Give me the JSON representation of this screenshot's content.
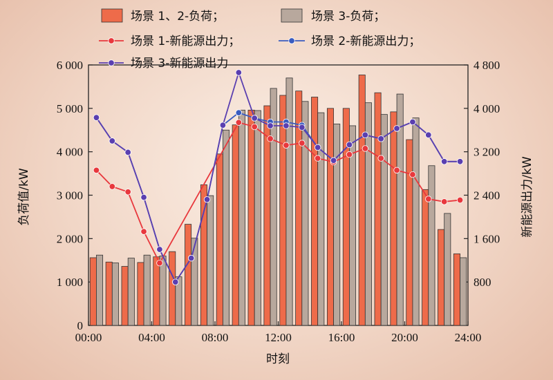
{
  "chart_data": {
    "type": "bar",
    "xlabel": "时刻",
    "ylabel_left": "负荷值/kW",
    "ylabel_right": "新能源出力/kW",
    "ylim_left": [
      0,
      6000
    ],
    "ylim_right": [
      0,
      4800
    ],
    "yticks_left": [
      "0",
      "1 000",
      "2 000",
      "3 000",
      "4 000",
      "5 000",
      "6 000"
    ],
    "yticks_left_values": [
      0,
      1000,
      2000,
      3000,
      4000,
      5000,
      6000
    ],
    "yticks_right": [
      "800",
      "1 600",
      "2 400",
      "3 200",
      "4 000",
      "4 800"
    ],
    "yticks_right_values": [
      800,
      1600,
      2400,
      3200,
      4000,
      4800
    ],
    "xticks": [
      "00:00",
      "04:00",
      "08:00",
      "12:00",
      "16:00",
      "20:00",
      "24:00"
    ],
    "xticks_hours": [
      0,
      4,
      8,
      12,
      16,
      20,
      24
    ],
    "hours": [
      1,
      2,
      3,
      4,
      5,
      6,
      7,
      8,
      9,
      10,
      11,
      12,
      13,
      14,
      15,
      16,
      17,
      18,
      19,
      20,
      21,
      22,
      23,
      24
    ],
    "bar_series": [
      {
        "name": "场景 1、2-负荷；",
        "color": "#ee6b4a",
        "values": [
          1560,
          1460,
          1360,
          1450,
          1580,
          1700,
          2330,
          3240,
          3950,
          4620,
          4960,
          5060,
          5300,
          5400,
          5260,
          5000,
          5000,
          5770,
          5360,
          4920,
          4280,
          3130,
          2210,
          1650
        ]
      },
      {
        "name": "场景 3-负荷；",
        "color": "#b8a89d",
        "values": [
          1620,
          1440,
          1550,
          1620,
          1600,
          1120,
          2010,
          2990,
          4500,
          4960,
          4950,
          5460,
          5700,
          5160,
          4900,
          4640,
          4600,
          5130,
          4860,
          5330,
          4780,
          3680,
          2580,
          1560
        ]
      }
    ],
    "line_series": [
      {
        "name": "场景 1-新能源出力；",
        "color": "#e8383d",
        "axis": "right",
        "values": [
          2860,
          2560,
          2460,
          1730,
          1150,
          null,
          null,
          null,
          null,
          3740,
          3660,
          3440,
          3320,
          3360,
          3080,
          3010,
          3150,
          3260,
          3080,
          2860,
          2780,
          2330,
          2280,
          2310
        ]
      },
      {
        "name": "场景 2-新能源出力；",
        "color": "#3a5cc0",
        "axis": "right",
        "values": [
          3830,
          3400,
          3190,
          2360,
          1400,
          800,
          1240,
          2320,
          3690,
          3920,
          3820,
          3750,
          3750,
          3690,
          3280,
          3040,
          3330,
          3510,
          3440,
          3630,
          3750,
          3510,
          3020,
          3020
        ]
      },
      {
        "name": "场景 3-新能源出力",
        "color": "#5a3fb0",
        "axis": "right",
        "values": [
          3830,
          3400,
          3190,
          2360,
          1400,
          800,
          1240,
          2320,
          3690,
          4660,
          3820,
          3680,
          3680,
          3650,
          3280,
          3040,
          3330,
          3510,
          3440,
          3630,
          3750,
          3510,
          3020,
          3020
        ]
      }
    ]
  }
}
